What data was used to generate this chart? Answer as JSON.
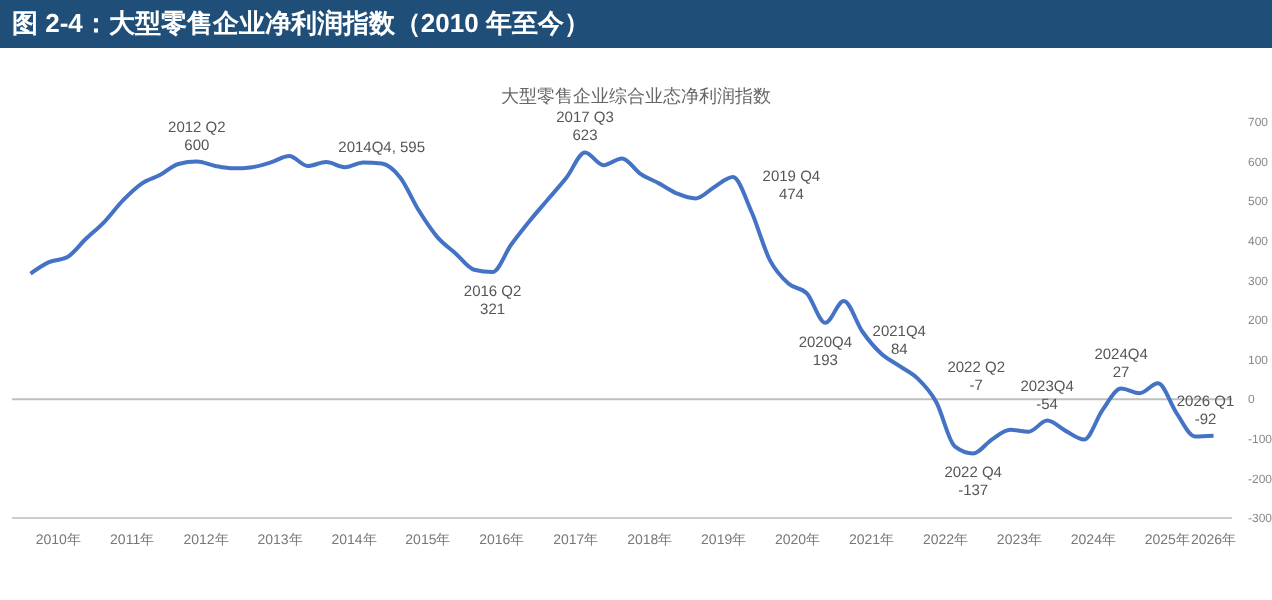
{
  "chart_data": {
    "type": "line",
    "title": "图 2-4：大型零售企业净利润指数（2010 年至今）",
    "subtitle": "大型零售企业综合业态净利润指数",
    "x": [
      2010,
      2010.25,
      2010.5,
      2010.75,
      2011,
      2011.25,
      2011.5,
      2011.75,
      2012,
      2012.25,
      2012.5,
      2012.75,
      2013,
      2013.25,
      2013.5,
      2013.75,
      2014,
      2014.25,
      2014.5,
      2014.75,
      2015,
      2015.25,
      2015.5,
      2015.75,
      2016,
      2016.25,
      2016.5,
      2016.75,
      2017,
      2017.25,
      2017.5,
      2017.75,
      2018,
      2018.25,
      2018.5,
      2018.75,
      2019,
      2019.25,
      2019.5,
      2019.75,
      2020,
      2020.25,
      2020.5,
      2020.75,
      2021,
      2021.25,
      2021.5,
      2021.75,
      2022,
      2022.25,
      2022.5,
      2022.75,
      2023,
      2023.25,
      2023.5,
      2023.75,
      2024,
      2024.25,
      2024.5,
      2024.75,
      2025,
      2025.25,
      2025.5,
      2025.75,
      2026
    ],
    "series": [
      {
        "color": "#4472c4",
        "values": [
          317,
          346,
          359,
          405,
          448,
          502,
          544,
          566,
          594,
          600,
          589,
          583,
          586,
          598,
          614,
          589,
          599,
          586,
          598,
          595,
          560,
          477,
          410,
          368,
          327,
          321,
          390,
          450,
          505,
          560,
          623,
          591,
          608,
          569,
          545,
          519,
          507,
          536,
          561,
          474,
          351,
          292,
          267,
          193,
          248,
          171,
          116,
          84,
          52,
          -7,
          -119,
          -137,
          -102,
          -77,
          -82,
          -54,
          -80,
          -102,
          -27,
          27,
          15,
          40,
          -35,
          -94,
          -92
        ]
      }
    ],
    "xlim": [
      2009.75,
      2026.25
    ],
    "xticks": [
      {
        "value": 2010.375,
        "label": "2010年"
      },
      {
        "value": 2011.375,
        "label": "2011年"
      },
      {
        "value": 2012.375,
        "label": "2012年"
      },
      {
        "value": 2013.375,
        "label": "2013年"
      },
      {
        "value": 2014.375,
        "label": "2014年"
      },
      {
        "value": 2015.375,
        "label": "2015年"
      },
      {
        "value": 2016.375,
        "label": "2016年"
      },
      {
        "value": 2017.375,
        "label": "2017年"
      },
      {
        "value": 2018.375,
        "label": "2018年"
      },
      {
        "value": 2019.375,
        "label": "2019年"
      },
      {
        "value": 2020.375,
        "label": "2020年"
      },
      {
        "value": 2021.375,
        "label": "2021年"
      },
      {
        "value": 2022.375,
        "label": "2022年"
      },
      {
        "value": 2023.375,
        "label": "2023年"
      },
      {
        "value": 2024.375,
        "label": "2024年"
      },
      {
        "value": 2025.375,
        "label": "2025年"
      },
      {
        "value": 2026,
        "label": "2026年"
      }
    ],
    "ylim": [
      -300,
      700
    ],
    "yticks": [
      -300,
      -200,
      -100,
      0,
      100,
      200,
      300,
      400,
      500,
      600,
      700
    ],
    "ref_lines": [
      {
        "axis": "y",
        "value": 0,
        "color": "#bfbfbf"
      }
    ],
    "annotations": [
      {
        "text": "2012 Q2\n600",
        "x": 2012.25,
        "y": 600
      },
      {
        "text": "2014Q4, 595",
        "x": 2014.75,
        "y": 595
      },
      {
        "text": "2016 Q2\n321",
        "x": 2016.25,
        "y": 321
      },
      {
        "text": "2017 Q3\n623",
        "x": 2017.5,
        "y": 623
      },
      {
        "text": "2019 Q4\n474",
        "x": 2019.75,
        "y": 474
      },
      {
        "text": "2020Q4\n193",
        "x": 2020.75,
        "y": 193
      },
      {
        "text": "2021Q4\n84",
        "x": 2021.75,
        "y": 84
      },
      {
        "text": "2022 Q2\n-7",
        "x": 2022.25,
        "y": -7
      },
      {
        "text": "2022 Q4\n-137",
        "x": 2022.75,
        "y": -137
      },
      {
        "text": "2023Q4\n-54",
        "x": 2023.75,
        "y": -54
      },
      {
        "text": "2024Q4\n27",
        "x": 2024.75,
        "y": 27
      },
      {
        "text": "2026 Q1\n-92",
        "x": 2026,
        "y": -92
      }
    ],
    "grid": false,
    "legend": false,
    "marker": "none",
    "line_style": "solid"
  }
}
